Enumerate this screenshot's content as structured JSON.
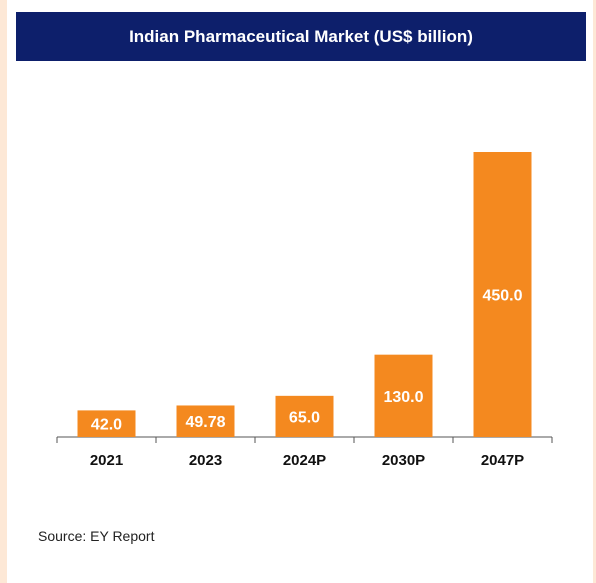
{
  "header": {
    "title": "Indian Pharmaceutical Market (US$ billion)"
  },
  "source": "Source: EY Report",
  "colors": {
    "header_bg": "#0d1f6b",
    "bar": "#f4891f",
    "bar_label": "#ffffff",
    "axis": "#555555"
  },
  "chart_data": {
    "type": "bar",
    "title": "Indian Pharmaceutical Market (US$ billion)",
    "categories": [
      "2021",
      "2023",
      "2024P",
      "2030P",
      "2047P"
    ],
    "values": [
      42.0,
      49.78,
      65.0,
      130.0,
      450.0
    ],
    "value_labels": [
      "42.0",
      "49.78",
      "65.0",
      "130.0",
      "450.0"
    ],
    "xlabel": "",
    "ylabel": "",
    "ylim": [
      0,
      450
    ],
    "grid": false,
    "legend": "none"
  }
}
